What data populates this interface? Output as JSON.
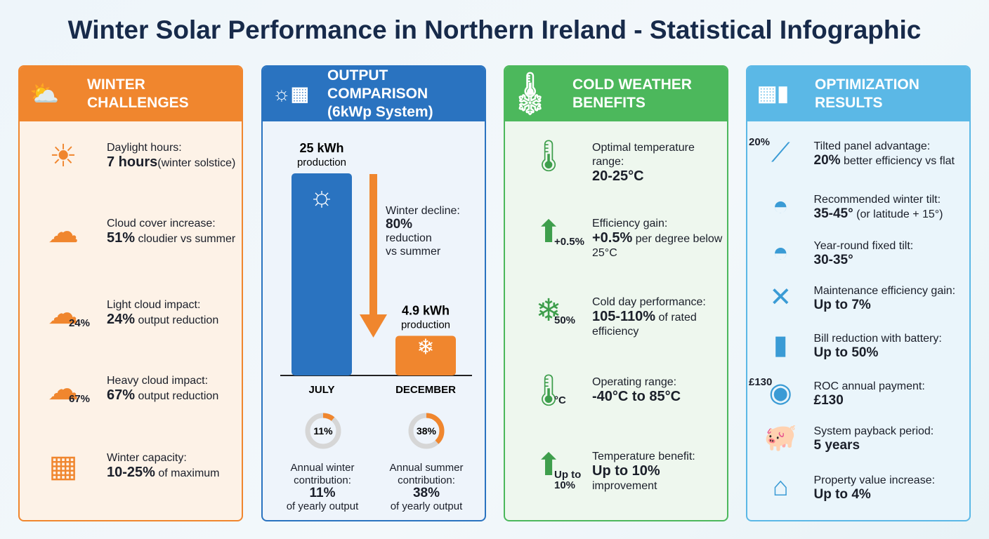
{
  "title": "Winter Solar Performance in Northern Ireland - Statistical Infographic",
  "panels": {
    "challenges": {
      "title1": "WINTER",
      "title2": "CHALLENGES",
      "color": "#f0862e",
      "items": [
        {
          "icon": "sun-clock-icon",
          "label": "Daylight hours:",
          "value": "7 hours",
          "suffix": "(winter solstice)"
        },
        {
          "icon": "cloud-up-arrow-icon",
          "label": "Cloud cover increase:",
          "value": "51%",
          "suffix": " cloudier vs summer"
        },
        {
          "icon": "cloud-down-arrow-icon",
          "badge": "24%",
          "label": "Light cloud impact:",
          "value": "24%",
          "suffix": " output reduction"
        },
        {
          "icon": "dark-cloud-down-arrow-icon",
          "badge": "67%",
          "label": "Heavy cloud impact:",
          "value": "67%",
          "suffix": " output reduction"
        },
        {
          "icon": "solar-panel-battery-icon",
          "label": "Winter capacity:",
          "value": "10-25%",
          "suffix": " of maximum"
        }
      ]
    },
    "output": {
      "title1": "OUTPUT COMPARISON",
      "title2": "(6kWp System)",
      "color": "#2a73c0",
      "decline_label": "Winter decline:",
      "decline_value": "80%",
      "decline_suffix1": "reduction",
      "decline_suffix2": "vs summer",
      "donuts": [
        {
          "percent": "11%",
          "line1": "Annual winter",
          "line2": "contribution:",
          "value": "11%",
          "suffix": "of yearly output"
        },
        {
          "percent": "38%",
          "line1": "Annual summer",
          "line2": "contribution:",
          "value": "38%",
          "suffix": "of yearly output"
        }
      ]
    },
    "cold": {
      "title1": "COLD WEATHER",
      "title2": "BENEFITS",
      "color": "#4cb85c",
      "items": [
        {
          "icon": "thermometer-check-icon",
          "label": "Optimal temperature range:",
          "value": "20-25°C",
          "suffix": ""
        },
        {
          "icon": "up-arrow-thermometer-icon",
          "badge": "+0.5%",
          "label": "Efficiency gain:",
          "value": "+0.5%",
          "suffix": " per degree below 25°C"
        },
        {
          "icon": "snowflake-panel-icon",
          "badge": "50%",
          "label": "Cold day performance:",
          "value": "105-110%",
          "suffix": " of rated efficiency"
        },
        {
          "icon": "thermometer-celsius-icon",
          "badge": "°C",
          "label": "Operating range:",
          "value": "-40°C to 85°C",
          "suffix": ""
        },
        {
          "icon": "up-arrow-panel-icon",
          "badge": "Up to 10%",
          "label": "Temperature benefit:",
          "value": "Up to 10%",
          "suffix": " improvement"
        }
      ]
    },
    "optimization": {
      "title1": "OPTIMIZATION",
      "title2": "RESULTS",
      "color": "#5bb8e6",
      "items": [
        {
          "icon": "tilted-panel-icon",
          "badge": "20%",
          "label": "Tilted panel advantage:",
          "value": "20%",
          "suffix": " better efficiency vs flat"
        },
        {
          "icon": "protractor-icon",
          "label": "Recommended winter tilt:",
          "value": "35-45°",
          "suffix": " (or latitude + 15°)"
        },
        {
          "icon": "protractor-icon",
          "label": "Year-round fixed tilt:",
          "value": "30-35°",
          "suffix": ""
        },
        {
          "icon": "wrench-screwdriver-icon",
          "label": "Maintenance efficiency gain:",
          "value": "Up to 7%",
          "suffix": ""
        },
        {
          "icon": "battery-money-icon",
          "label": "Bill reduction with battery:",
          "value": "Up to 50%",
          "suffix": ""
        },
        {
          "icon": "money-bag-icon",
          "badge": "£130",
          "label": "ROC annual payment:",
          "value": "£130",
          "suffix": ""
        },
        {
          "icon": "piggy-bank-icon",
          "label": "System payback period:",
          "value": "5 years",
          "suffix": ""
        },
        {
          "icon": "house-arrow-icon",
          "label": "Property value increase:",
          "value": "Up to 4%",
          "suffix": ""
        }
      ]
    }
  },
  "chart_data": {
    "type": "bar",
    "categories": [
      "JULY",
      "DECEMBER"
    ],
    "values": [
      25,
      4.9
    ],
    "unit": "kWh",
    "value_labels": [
      "25 kWh",
      "4.9 kWh"
    ],
    "value_sublabel": "production",
    "colors": [
      "#2a73c0",
      "#f0862e"
    ],
    "donut_values": [
      11,
      38
    ]
  }
}
